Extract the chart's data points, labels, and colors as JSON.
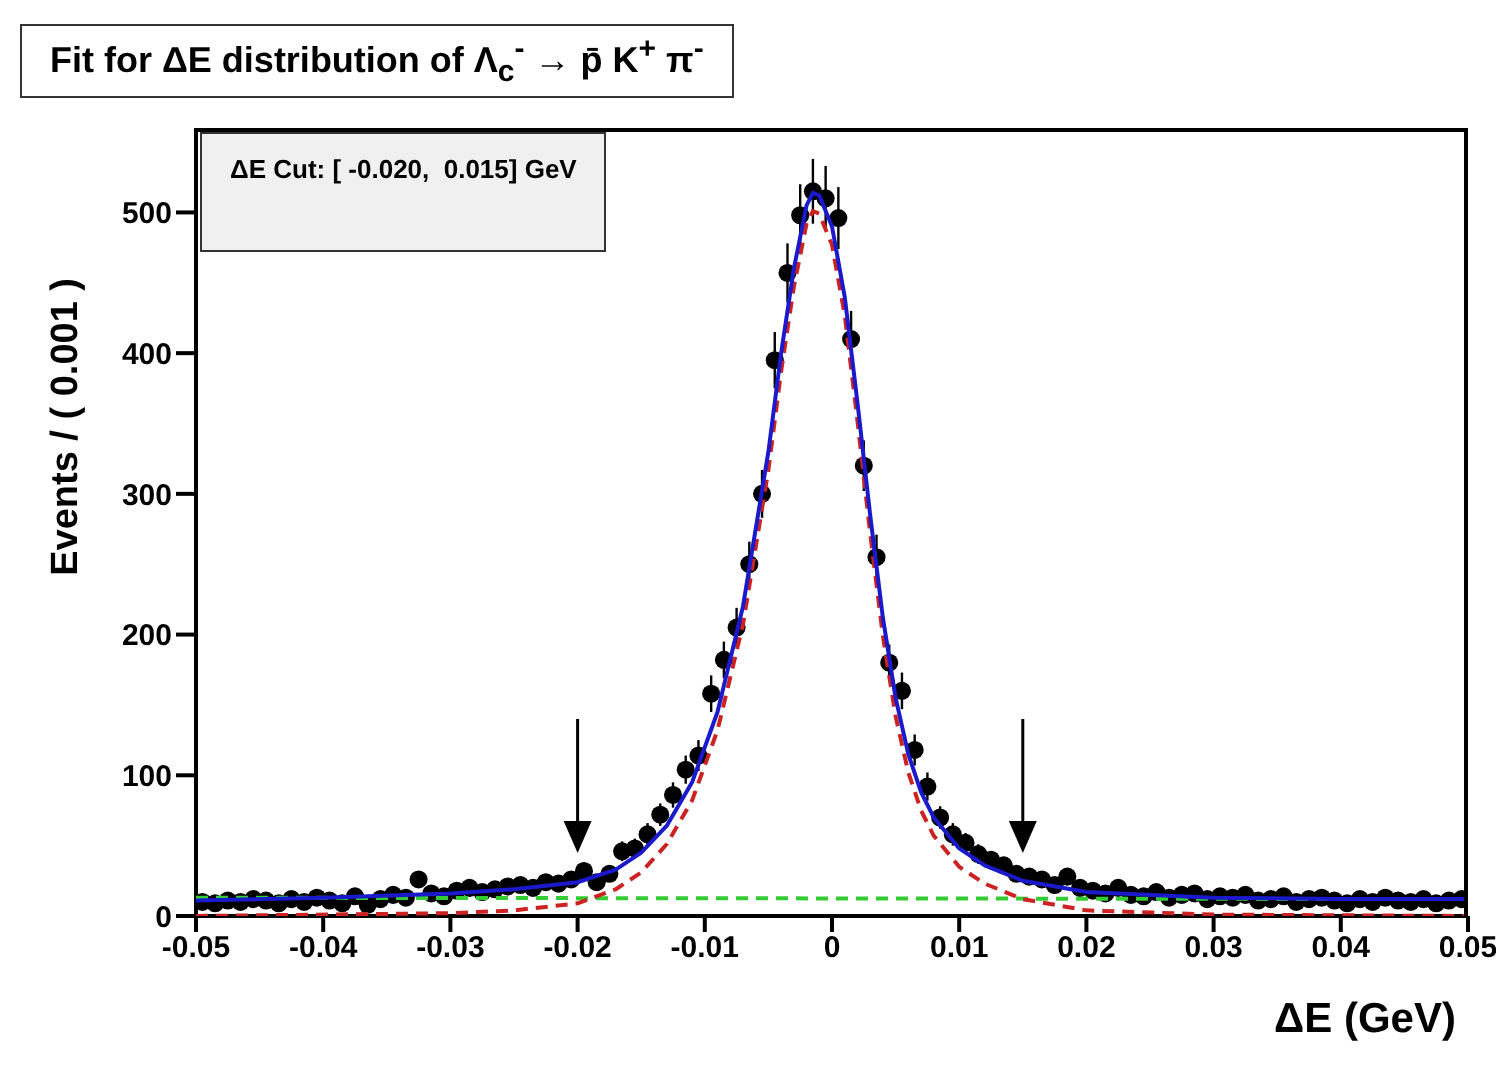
{
  "chart_data": {
    "type": "scatter",
    "title": "Fit for ΔE distribution of Λ$_{c}$$^{-}$ → p̄ K$^{+}$ π$^{-}$",
    "xlabel": "ΔE (GeV)",
    "ylabel": "Events / ( 0.001 )",
    "annotations": [
      "ΔE Cut: [ -0.020,  0.015] GeV"
    ],
    "xlim": [
      -0.05,
      0.05
    ],
    "xticks": [
      -0.05,
      -0.04,
      -0.03,
      -0.02,
      -0.01,
      0,
      0.01,
      0.02,
      0.03,
      0.04,
      0.05
    ],
    "ylim": [
      0,
      560
    ],
    "yticks": [
      0,
      100,
      200,
      300,
      400,
      500
    ],
    "ref_lines": [
      {
        "axis": "x",
        "value": -0.02,
        "color": "#000000"
      },
      {
        "axis": "x",
        "value": 0.015,
        "color": "#000000"
      }
    ],
    "series": [
      {
        "color": "#000000",
        "marker": "circle",
        "x": [
          -0.0495,
          -0.0485,
          -0.0475,
          -0.0465,
          -0.0455,
          -0.0445,
          -0.0435,
          -0.0425,
          -0.0415,
          -0.0405,
          -0.0395,
          -0.0385,
          -0.0375,
          -0.0365,
          -0.0355,
          -0.0345,
          -0.0335,
          -0.0325,
          -0.0315,
          -0.0305,
          -0.0295,
          -0.0285,
          -0.0275,
          -0.0265,
          -0.0255,
          -0.0245,
          -0.0235,
          -0.0225,
          -0.0215,
          -0.0205,
          -0.0195,
          -0.0185,
          -0.0175,
          -0.0165,
          -0.0155,
          -0.0145,
          -0.0135,
          -0.0125,
          -0.0115,
          -0.0105,
          -0.0095,
          -0.0085,
          -0.0075,
          -0.0065,
          -0.0055,
          -0.0045,
          -0.0035,
          -0.0025,
          -0.0015,
          -0.0005,
          0.0005,
          0.0015,
          0.0025,
          0.0035,
          0.0045,
          0.0055,
          0.0065,
          0.0075,
          0.0085,
          0.0095,
          0.0105,
          0.0115,
          0.0125,
          0.0135,
          0.0145,
          0.0155,
          0.0165,
          0.0175,
          0.0185,
          0.0195,
          0.0205,
          0.0215,
          0.0225,
          0.0235,
          0.0245,
          0.0255,
          0.0265,
          0.0275,
          0.0285,
          0.0295,
          0.0305,
          0.0315,
          0.0325,
          0.0335,
          0.0345,
          0.0355,
          0.0365,
          0.0375,
          0.0385,
          0.0395,
          0.0405,
          0.0415,
          0.0425,
          0.0435,
          0.0445,
          0.0455,
          0.0465,
          0.0475,
          0.0485,
          0.0495
        ],
        "values": [
          10,
          9,
          11,
          10,
          12,
          11,
          9,
          12,
          10,
          13,
          11,
          9,
          14,
          8,
          12,
          15,
          13,
          26,
          16,
          14,
          18,
          20,
          17,
          19,
          21,
          22,
          20,
          24,
          23,
          26,
          32,
          24,
          30,
          46,
          48,
          58,
          72,
          86,
          104,
          114,
          158,
          182,
          205,
          250,
          300,
          395,
          457,
          498,
          515,
          510,
          496,
          410,
          320,
          255,
          180,
          160,
          118,
          92,
          70,
          58,
          52,
          44,
          40,
          36,
          30,
          28,
          26,
          22,
          28,
          20,
          18,
          16,
          20,
          15,
          14,
          17,
          13,
          15,
          16,
          12,
          14,
          13,
          15,
          11,
          12,
          14,
          10,
          12,
          13,
          11,
          9,
          12,
          10,
          13,
          11,
          10,
          12,
          9,
          11,
          12
        ],
        "errors": [
          3,
          3,
          3,
          3,
          3,
          3,
          3,
          3,
          3,
          4,
          3,
          3,
          4,
          3,
          3,
          4,
          4,
          5,
          4,
          4,
          4,
          4,
          4,
          4,
          5,
          5,
          4,
          5,
          5,
          5,
          6,
          5,
          5,
          7,
          7,
          8,
          8,
          9,
          10,
          11,
          13,
          13,
          14,
          16,
          17,
          20,
          21,
          22,
          23,
          23,
          22,
          20,
          18,
          16,
          13,
          13,
          11,
          10,
          8,
          8,
          7,
          7,
          6,
          6,
          5,
          5,
          5,
          5,
          5,
          4,
          4,
          4,
          4,
          4,
          4,
          4,
          4,
          4,
          4,
          3,
          4,
          4,
          4,
          3,
          3,
          4,
          3,
          3,
          4,
          3,
          3,
          3,
          3,
          4,
          3,
          3,
          3,
          3,
          3,
          3
        ]
      },
      {
        "type": "line",
        "color": "#33cc33",
        "line_style": "dashed",
        "marker": "none",
        "x": [
          -0.05,
          0.05
        ],
        "values": [
          13,
          12
        ]
      },
      {
        "type": "line",
        "color": "#cc2222",
        "line_style": "dashed",
        "marker": "none",
        "x": [
          -0.05,
          -0.03,
          -0.025,
          -0.02,
          -0.017,
          -0.015,
          -0.013,
          -0.011,
          -0.009,
          -0.007,
          -0.005,
          -0.004,
          -0.003,
          -0.002,
          -0.0015,
          -0.001,
          0,
          0.001,
          0.002,
          0.003,
          0.004,
          0.005,
          0.006,
          0.007,
          0.008,
          0.01,
          0.012,
          0.015,
          0.02,
          0.03,
          0.05
        ],
        "values": [
          0,
          2,
          4,
          9,
          19,
          31,
          51,
          82,
          132,
          207,
          317,
          387,
          447,
          492,
          501,
          499,
          477,
          427,
          352,
          272,
          199,
          142,
          102,
          75,
          57,
          35,
          23,
          12,
          4,
          1,
          0
        ]
      },
      {
        "type": "line",
        "color": "#1a1acc",
        "line_style": "solid",
        "marker": "none",
        "x": [
          -0.05,
          -0.04,
          -0.03,
          -0.025,
          -0.02,
          -0.017,
          -0.015,
          -0.013,
          -0.011,
          -0.009,
          -0.007,
          -0.005,
          -0.004,
          -0.003,
          -0.002,
          -0.0015,
          -0.001,
          0,
          0.001,
          0.002,
          0.003,
          0.004,
          0.005,
          0.006,
          0.007,
          0.008,
          0.01,
          0.012,
          0.015,
          0.02,
          0.03,
          0.04,
          0.05
        ],
        "values": [
          11,
          13,
          16,
          19,
          24,
          33,
          45,
          64,
          95,
          145,
          220,
          330,
          400,
          460,
          505,
          514,
          512,
          490,
          440,
          365,
          285,
          212,
          155,
          115,
          88,
          70,
          48,
          36,
          25,
          17,
          13,
          12,
          12
        ]
      }
    ]
  }
}
